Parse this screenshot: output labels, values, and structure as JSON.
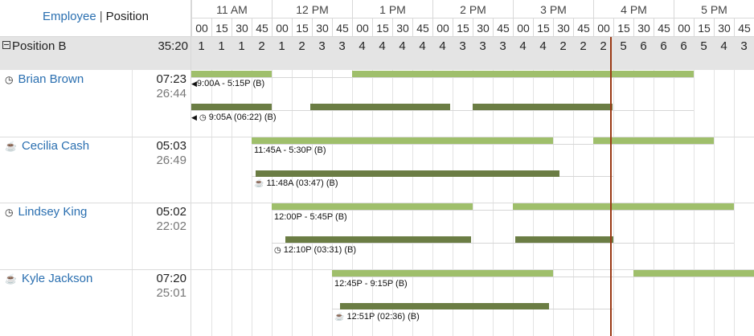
{
  "tabs": {
    "employee": "Employee",
    "separator": "|",
    "position": "Position"
  },
  "hours": [
    "11 AM",
    "12 PM",
    "1 PM",
    "2 PM",
    "3 PM",
    "4 PM",
    "5 PM"
  ],
  "minutes": [
    "00",
    "15",
    "30",
    "45",
    "00",
    "15",
    "30",
    "45",
    "00",
    "15",
    "30",
    "45",
    "00",
    "15",
    "30",
    "45",
    "00",
    "15",
    "30",
    "45",
    "00",
    "15",
    "30",
    "45",
    "00",
    "15",
    "30",
    "45"
  ],
  "position": {
    "name": "Position B",
    "collapse_icon": "minus-box-icon",
    "total": "35:20",
    "counts": [
      "1",
      "1",
      "1",
      "2",
      "1",
      "2",
      "3",
      "3",
      "4",
      "4",
      "4",
      "4",
      "4",
      "3",
      "3",
      "3",
      "4",
      "4",
      "2",
      "2",
      "2",
      "5",
      "6",
      "6",
      "6",
      "5",
      "4",
      "3"
    ]
  },
  "current_time_color": "#9b3a15",
  "colors": {
    "scheduled": "#9fbf6b",
    "punched": "#6b7d44",
    "link": "#2a6fb0"
  },
  "employees": [
    {
      "name": "Brian Brown",
      "icon": "clock-icon",
      "time1": "07:23",
      "time2": "26:44",
      "schedule_label": "9:00A - 5:15P (B)",
      "punch_label": "9:05A (06:22) (B)",
      "punch_icon": "clock-icon"
    },
    {
      "name": "Cecilia Cash",
      "icon": "coffee-cup-icon",
      "time1": "05:03",
      "time2": "26:49",
      "schedule_label": "11:45A - 5:30P (B)",
      "punch_label": "11:48A (03:47) (B)",
      "punch_icon": "coffee-cup-icon"
    },
    {
      "name": "Lindsey King",
      "icon": "clock-icon",
      "time1": "05:02",
      "time2": "22:02",
      "schedule_label": "12:00P - 5:45P (B)",
      "punch_label": "12:10P (03:31) (B)",
      "punch_icon": "clock-icon"
    },
    {
      "name": "Kyle Jackson",
      "icon": "coffee-cup-icon",
      "time1": "07:20",
      "time2": "25:01",
      "schedule_label": "12:45P - 9:15P (B)",
      "punch_label": "12:51P (02:36) (B)",
      "punch_icon": "coffee-cup-icon"
    }
  ]
}
